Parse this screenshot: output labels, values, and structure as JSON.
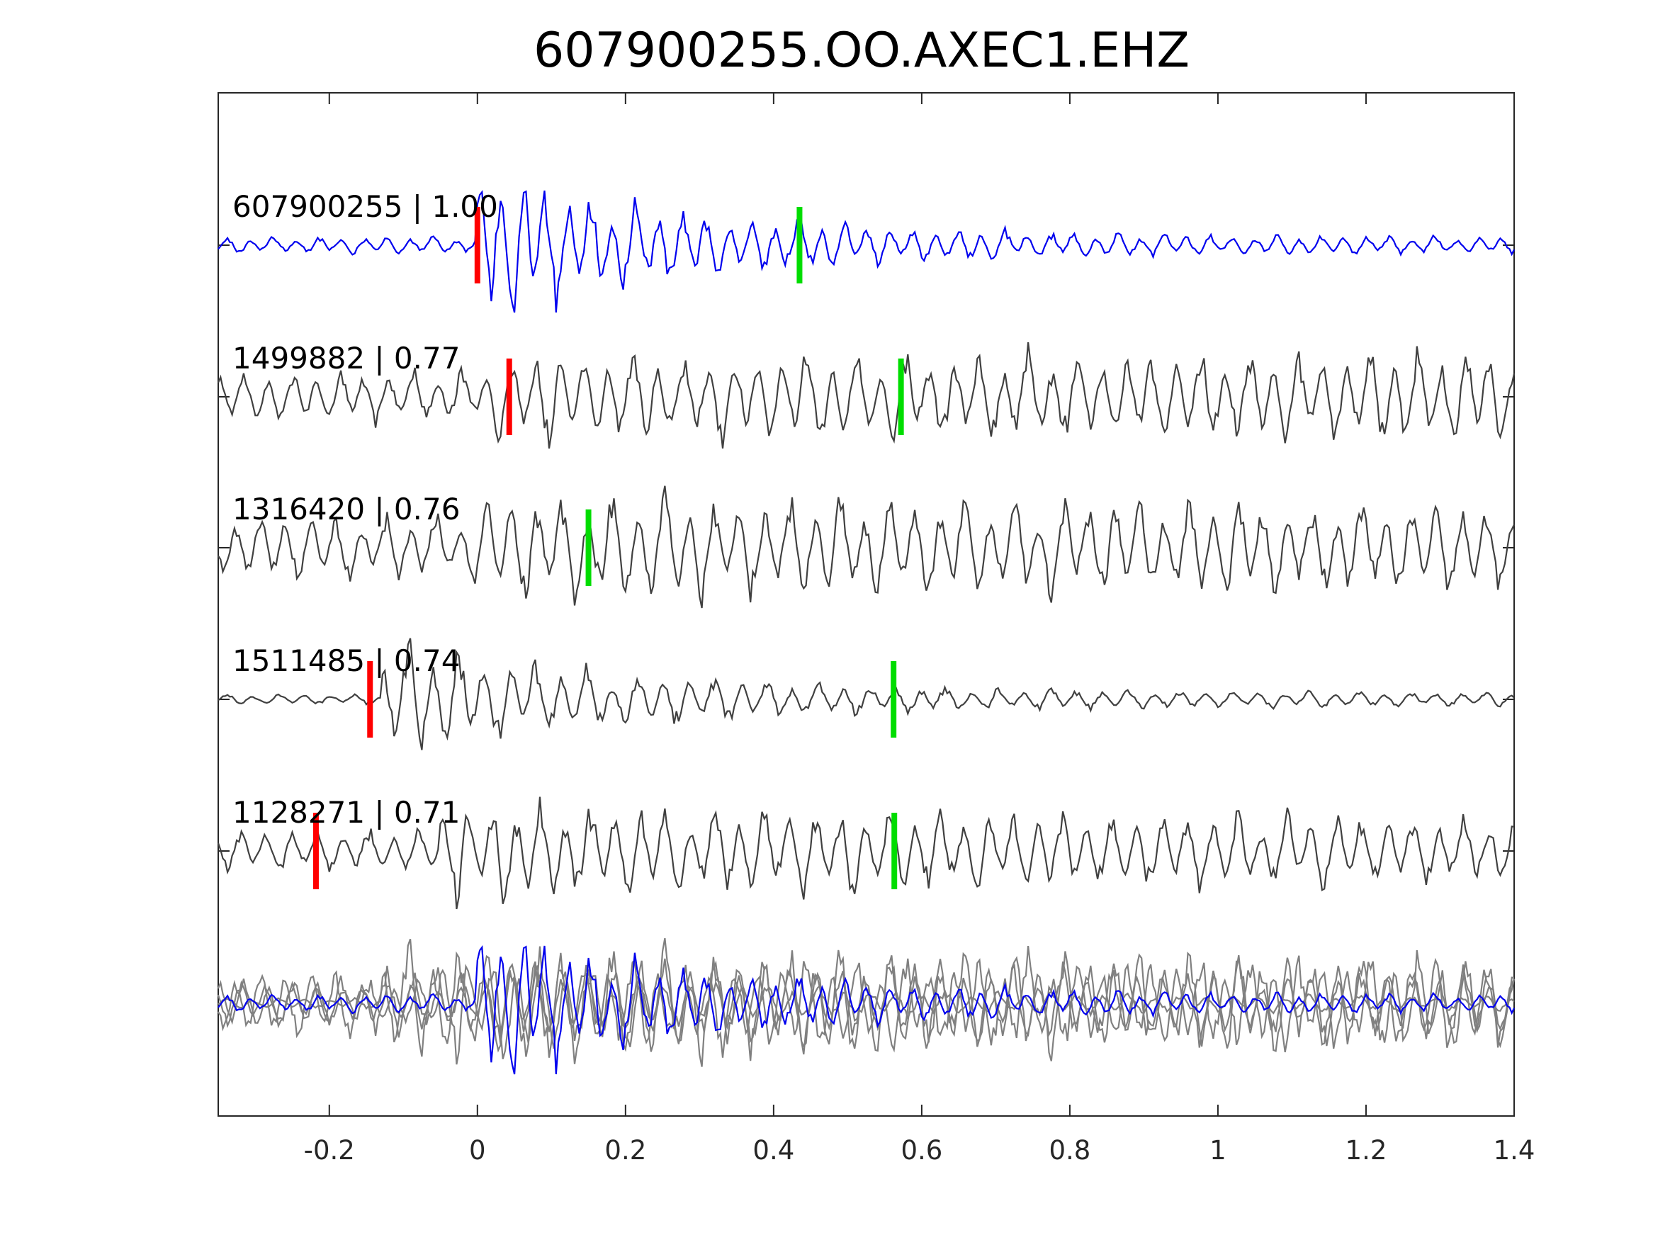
{
  "chart_data": {
    "type": "line",
    "title": "607900255.OO.AXEC1.EHZ",
    "xlabel": "",
    "ylabel": "",
    "xlim": [
      -0.35,
      1.4
    ],
    "xticks": [
      -0.2,
      0,
      0.2,
      0.4,
      0.6,
      0.8,
      1,
      1.2,
      1.4
    ],
    "xtick_labels": [
      "-0.2",
      "0",
      "0.2",
      "0.4",
      "0.6",
      "0.8",
      "1",
      "1.2",
      "1.4"
    ],
    "grid": false,
    "legend": "none",
    "colors": {
      "reference_trace": "#0000ee",
      "similar_trace": "#404040",
      "overlay_trace": "#808080",
      "p_pick": "#ff0000",
      "s_pick": "#00dd00",
      "axes": "#262626"
    },
    "series": [
      {
        "name": "607900255",
        "cc_label": "607900255 | 1.00",
        "cc": 1.0,
        "role": "reference",
        "p_pick": 0.0,
        "s_pick": 0.435,
        "onset": 0.0,
        "pre_amp": 0.1,
        "peak_amp": 1.0,
        "decay": 0.3,
        "tail_amp": 0.1,
        "period": 0.031
      },
      {
        "name": "1499882",
        "cc_label": "1499882 | 0.77",
        "cc": 0.77,
        "role": "similar",
        "p_pick": 0.043,
        "s_pick": 0.572,
        "onset": 0.02,
        "pre_amp": 0.32,
        "peak_amp": 0.55,
        "decay": 1.5,
        "tail_amp": 0.55,
        "period": 0.033
      },
      {
        "name": "1316420",
        "cc_label": "1316420 | 0.76",
        "cc": 0.76,
        "role": "similar",
        "p_pick": null,
        "s_pick": 0.15,
        "onset": -0.02,
        "pre_amp": 0.4,
        "peak_amp": 0.65,
        "decay": 1.2,
        "tail_amp": 0.5,
        "period": 0.034
      },
      {
        "name": "1511485",
        "cc_label": "1511485 | 0.74",
        "cc": 0.74,
        "role": "similar",
        "p_pick": -0.145,
        "s_pick": 0.562,
        "onset": -0.13,
        "pre_amp": 0.06,
        "peak_amp": 0.75,
        "decay": 0.35,
        "tail_amp": 0.08,
        "period": 0.035
      },
      {
        "name": "1128271",
        "cc_label": "1128271 | 0.71",
        "cc": 0.71,
        "role": "similar",
        "p_pick": -0.218,
        "s_pick": 0.563,
        "onset": -0.05,
        "pre_amp": 0.25,
        "peak_amp": 0.62,
        "decay": 1.0,
        "tail_amp": 0.35,
        "period": 0.034
      }
    ]
  }
}
